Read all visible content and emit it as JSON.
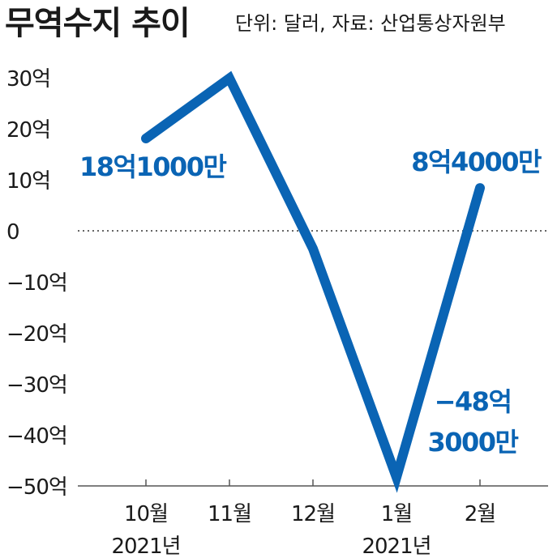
{
  "title": "무역수지 추이",
  "subtitle": "단위: 달러, 자료: 산업통상자원부",
  "accent_color": "#0a64b4",
  "chart_data": {
    "type": "line",
    "categories": [
      "10월",
      "11월",
      "12월",
      "1월",
      "2월"
    ],
    "year_labels": [
      "2021년",
      "",
      "",
      "2021년",
      ""
    ],
    "series": [
      {
        "values": [
          18.1,
          29.9,
          -3.5,
          -48.3,
          8.4
        ]
      }
    ],
    "unit": "억",
    "ylim": [
      -50,
      30
    ],
    "yticks": [
      30,
      20,
      10,
      0,
      -10,
      -20,
      -30,
      -40,
      -50
    ],
    "ytick_labels": [
      "30억",
      "20억",
      "10억",
      "0",
      "−10억",
      "−20억",
      "−30억",
      "−40억",
      "−50억"
    ],
    "zero_line": "dotted",
    "grid": false,
    "annotations": [
      {
        "index": 0,
        "lines": [
          "18억1000만"
        ]
      },
      {
        "index": 4,
        "lines": [
          "8억4000만"
        ]
      },
      {
        "index": 3,
        "lines": [
          "−48억",
          "3000만"
        ]
      }
    ]
  }
}
